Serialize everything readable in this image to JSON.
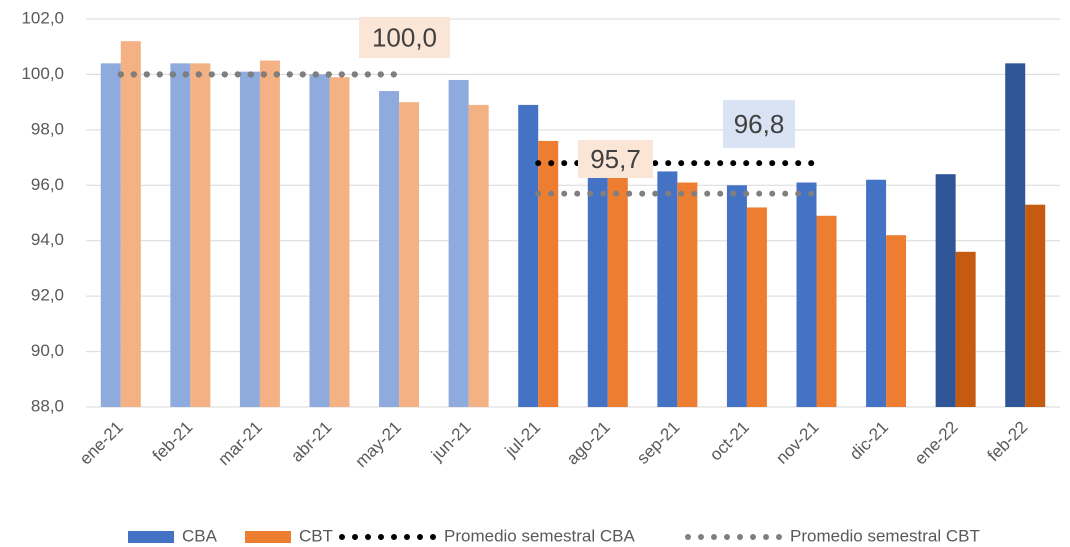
{
  "chart_data": {
    "type": "bar",
    "categories": [
      "ene-21",
      "feb-21",
      "mar-21",
      "abr-21",
      "may-21",
      "jun-21",
      "jul-21",
      "ago-21",
      "sep-21",
      "oct-21",
      "nov-21",
      "dic-21",
      "ene-22",
      "feb-22"
    ],
    "series": [
      {
        "name": "CBA",
        "color": "#4472c4",
        "colors": [
          "#8faadc",
          "#8faadc",
          "#8faadc",
          "#8faadc",
          "#8faadc",
          "#8faadc",
          "#4472c4",
          "#4472c4",
          "#4472c4",
          "#4472c4",
          "#4472c4",
          "#4472c4",
          "#2f5597",
          "#2f5597"
        ],
        "values": [
          100.4,
          100.4,
          100.1,
          100.0,
          99.4,
          99.8,
          98.9,
          96.3,
          96.5,
          96.0,
          96.1,
          96.2,
          96.4,
          100.4
        ]
      },
      {
        "name": "CBT",
        "color": "#ed7d31",
        "colors": [
          "#f4b183",
          "#f4b183",
          "#f4b183",
          "#f4b183",
          "#f4b183",
          "#f4b183",
          "#ed7d31",
          "#ed7d31",
          "#ed7d31",
          "#ed7d31",
          "#ed7d31",
          "#ed7d31",
          "#c55a11",
          "#c55a11"
        ],
        "values": [
          101.2,
          100.4,
          100.5,
          99.9,
          99.0,
          98.9,
          97.6,
          96.3,
          96.1,
          95.2,
          94.9,
          94.2,
          93.6,
          95.3
        ]
      }
    ],
    "lines": [
      {
        "name": "Promedio semestral CBA",
        "color": "#000000",
        "values": [
          100.0,
          100.0,
          100.0,
          100.0,
          100.0,
          null,
          96.8,
          96.8,
          96.8,
          96.8,
          96.8,
          null,
          null,
          null
        ]
      },
      {
        "name": "Promedio semestral CBT",
        "color": "#7f7f7f",
        "values": [
          100.0,
          100.0,
          100.0,
          100.0,
          100.0,
          null,
          95.7,
          95.7,
          95.7,
          95.7,
          95.7,
          null,
          null,
          null
        ]
      }
    ],
    "annotations": [
      {
        "text": "100,0",
        "bg": "#fbe5d6"
      },
      {
        "text": "95,7",
        "bg": "#fbe5d6"
      },
      {
        "text": "96,8",
        "bg": "#dae3f3"
      }
    ],
    "ylim": [
      88,
      102
    ],
    "yticks": [
      {
        "value": 88,
        "label": "88,0"
      },
      {
        "value": 90,
        "label": "90,0"
      },
      {
        "value": 92,
        "label": "92,0"
      },
      {
        "value": 94,
        "label": "94,0"
      },
      {
        "value": 96,
        "label": "96,0"
      },
      {
        "value": 98,
        "label": "98,0"
      },
      {
        "value": 100,
        "label": "100,0"
      },
      {
        "value": 102,
        "label": "102,0"
      }
    ],
    "grid": true
  }
}
